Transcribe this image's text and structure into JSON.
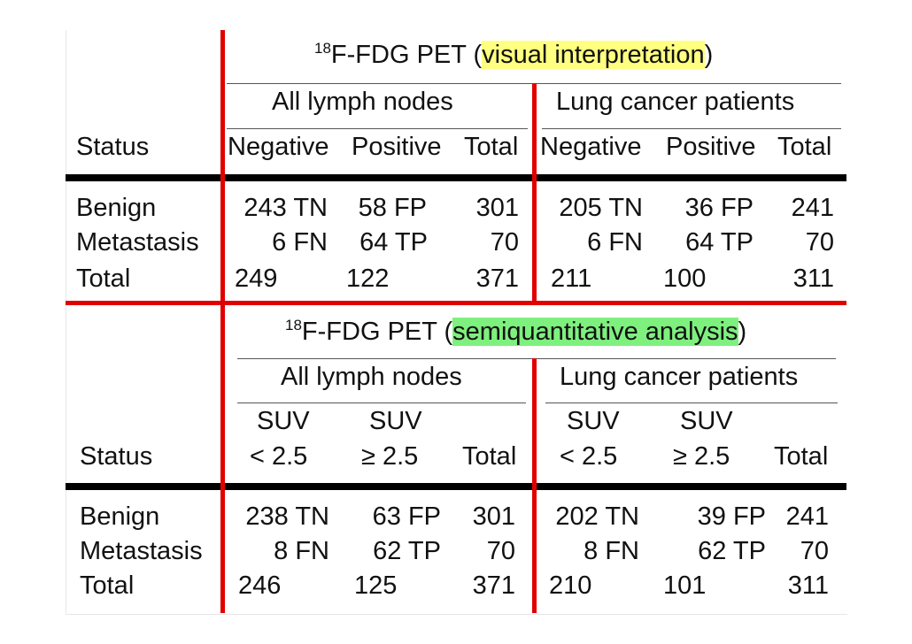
{
  "panels": [
    {
      "title_sup": "18",
      "title_main": "F-FDG PET (",
      "title_highlight": "visual interpretation",
      "title_close": ")",
      "highlight_color": "#ffff80",
      "group_left": "All lymph nodes",
      "group_right": "Lung cancer patients",
      "status_label": "Status",
      "columns": [
        "Negative",
        "Positive",
        "Total",
        "Negative",
        "Positive",
        "Total"
      ],
      "rows": [
        {
          "label": "Benign",
          "cells": [
            "243 TN",
            "58 FP",
            "301",
            "205 TN",
            "36 FP",
            "241"
          ]
        },
        {
          "label": "Metastasis",
          "cells": [
            "6 FN",
            "64 TP",
            "70",
            "6 FN",
            "64 TP",
            "70"
          ]
        },
        {
          "label": "Total",
          "cells": [
            "249",
            "122",
            "371",
            "211",
            "100",
            "311"
          ]
        }
      ]
    },
    {
      "title_sup": "18",
      "title_main": "F-FDG PET (",
      "title_highlight": "semiquantitative analysis",
      "title_close": ")",
      "highlight_color": "#7ef07e",
      "group_left": "All lymph nodes",
      "group_right": "Lung cancer patients",
      "status_label": "Status",
      "columns_top": [
        "SUV",
        "SUV",
        "SUV",
        "SUV"
      ],
      "columns": [
        "< 2.5",
        "≥ 2.5",
        "Total",
        "< 2.5",
        "≥ 2.5",
        "Total"
      ],
      "rows": [
        {
          "label": "Benign",
          "cells": [
            "238 TN",
            "63 FP",
            "301",
            "202 TN",
            "39 FP",
            "241"
          ]
        },
        {
          "label": "Metastasis",
          "cells": [
            "8 FN",
            "62 TP",
            "70",
            "8 FN",
            "62 TP",
            "70"
          ]
        },
        {
          "label": "Total",
          "cells": [
            "246",
            "125",
            "371",
            "210",
            "101",
            "311"
          ]
        }
      ]
    }
  ],
  "colors": {
    "divider_red": "#e00000",
    "rule_black": "#000000"
  }
}
